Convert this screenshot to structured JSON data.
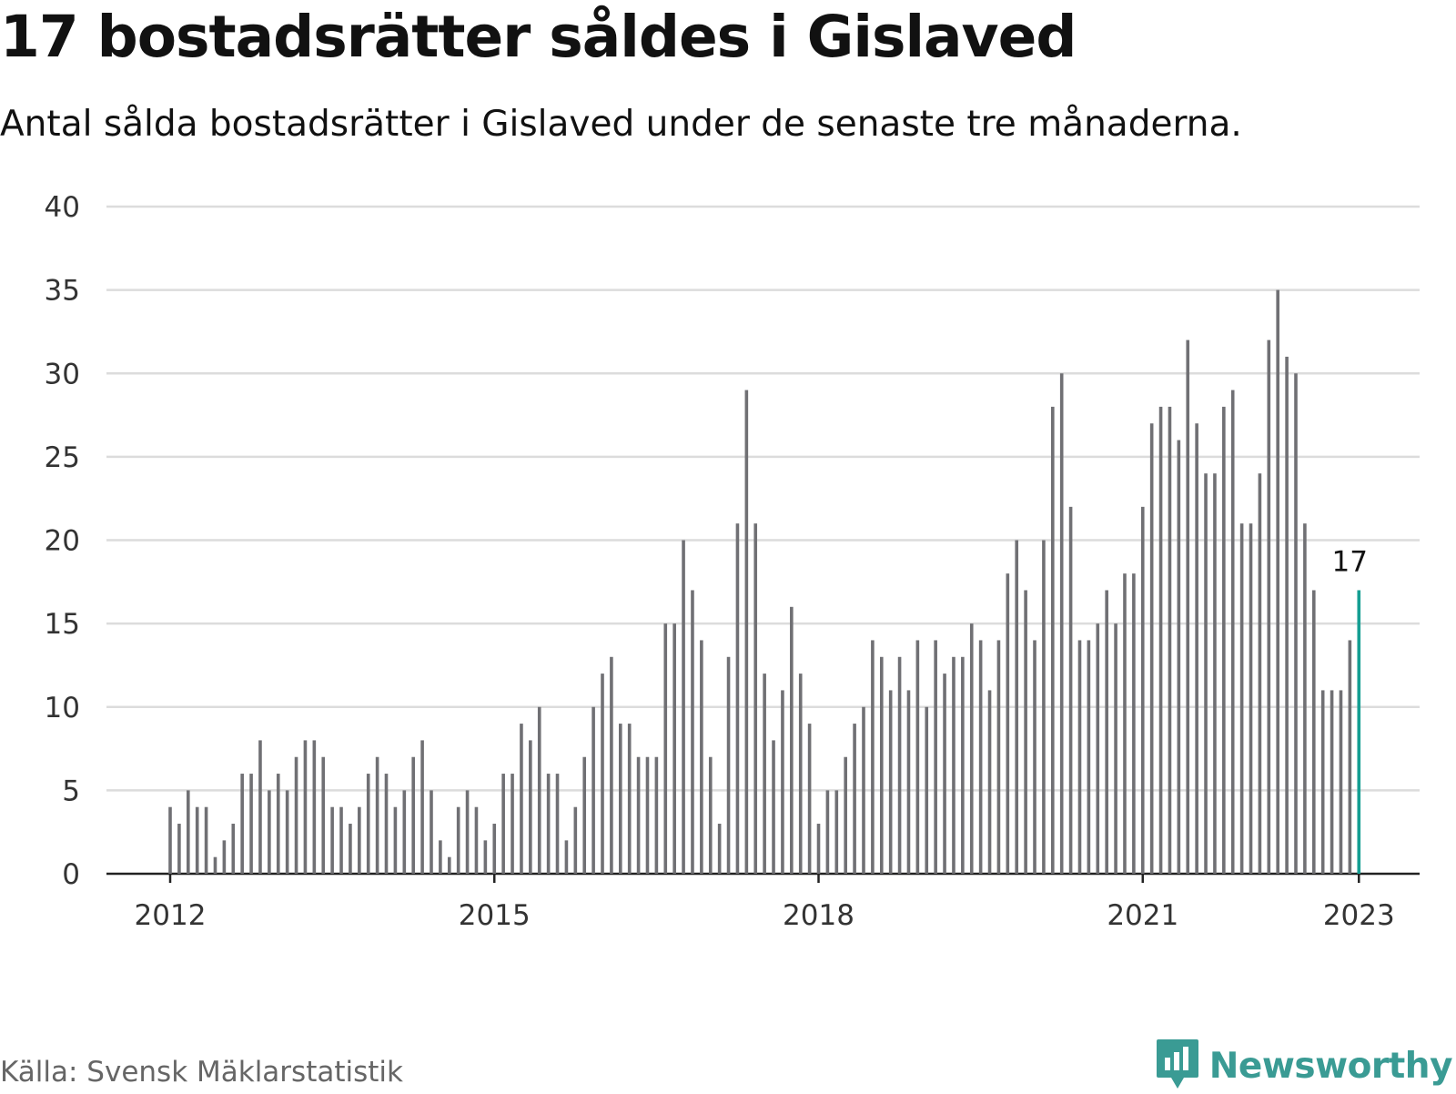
{
  "title": "17 bostadsrätter såldes i Gislaved",
  "subtitle": "Antal sålda bostadsrätter i Gislaved under de senaste tre månaderna.",
  "source": "Källa: Svensk Mäklarstatistik",
  "brand": {
    "name": "Newsworthy",
    "icon": "newsworthy-logo-icon"
  },
  "colors": {
    "bar": "#707074",
    "highlight": "#159e93",
    "grid": "#dcdcdc",
    "axis": "#222222",
    "brand": "#3a9b94"
  },
  "chart_data": {
    "type": "bar",
    "title": "17 bostadsrätter såldes i Gislaved",
    "subtitle": "Antal sålda bostadsrätter i Gislaved under de senaste tre månaderna.",
    "xlabel": "",
    "ylabel": "",
    "ylim": [
      0,
      40
    ],
    "yticks": [
      0,
      5,
      10,
      15,
      20,
      25,
      30,
      35,
      40
    ],
    "xticks": [
      "2012",
      "2015",
      "2018",
      "2021",
      "2023"
    ],
    "grid": true,
    "x_start": "2012-01",
    "x_end": "2023-01",
    "series": [
      {
        "values": [
          4,
          3,
          5,
          4,
          4,
          1,
          2,
          3,
          6,
          6,
          8,
          5,
          6,
          5,
          7,
          8,
          8,
          7,
          4,
          4,
          3,
          4,
          6,
          7,
          6,
          4,
          5,
          7,
          8,
          5,
          2,
          1,
          4,
          5,
          4,
          2,
          3,
          6,
          6,
          9,
          8,
          10,
          6,
          6,
          2,
          4,
          7,
          10,
          12,
          13,
          9,
          9,
          7,
          7,
          7,
          15,
          15,
          20,
          17,
          14,
          7,
          3,
          13,
          21,
          29,
          21,
          12,
          8,
          11,
          16,
          12,
          9,
          3,
          5,
          5,
          7,
          9,
          10,
          14,
          13,
          11,
          13,
          11,
          14,
          10,
          14,
          12,
          13,
          13,
          15,
          14,
          11,
          14,
          18,
          20,
          17,
          14,
          20,
          28,
          30,
          22,
          14,
          14,
          15,
          17,
          15,
          18,
          18,
          22,
          27,
          28,
          28,
          26,
          32,
          27,
          24,
          24,
          28,
          29,
          21,
          21,
          24,
          32,
          35,
          31,
          30,
          21,
          17,
          11,
          11,
          11,
          14,
          17
        ]
      }
    ],
    "highlight": {
      "x": "2023-01",
      "value": 17,
      "label": "17"
    }
  }
}
